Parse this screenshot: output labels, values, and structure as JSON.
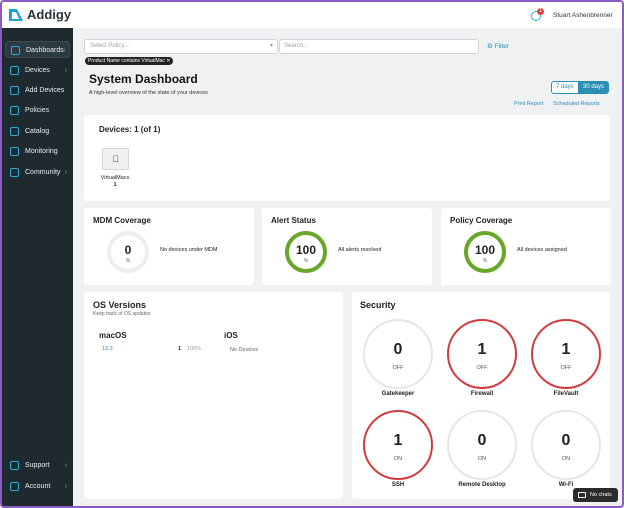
{
  "header": {
    "logo": "Addigy",
    "notification_count": 1,
    "user": "Stuart Ashenbrenner"
  },
  "sidebar": {
    "items": [
      "Dashboards",
      "Devices",
      "Add Devices",
      "Policies",
      "Catalog",
      "Monitoring",
      "Community"
    ],
    "bottom_items": [
      "Support",
      "Account"
    ]
  },
  "filters": {
    "policy_placeholder": "Select Policy...",
    "search_placeholder": "Search...",
    "filter_button": "Filter",
    "active_filter": "Product Name contains VirtualMac"
  },
  "page": {
    "title": "System Dashboard",
    "subtitle": "A high-level overview of the state of your devices",
    "ranges": [
      "7 days",
      "30 days"
    ],
    "links": [
      "Print Report",
      "Scheduled Reports"
    ]
  },
  "devices": {
    "title": "Devices: 1 (of 1)",
    "items": [
      {
        "name": "VirtualMacs",
        "count": 1
      }
    ]
  },
  "coverage": [
    {
      "title": "MDM Coverage",
      "value": 0,
      "unit": "%",
      "status": "No devices under MDM"
    },
    {
      "title": "Alert Status",
      "value": 100,
      "unit": "%",
      "status": "All alerts resolved"
    },
    {
      "title": "Policy Coverage",
      "value": 100,
      "unit": "%",
      "status": "All devices assigned"
    }
  ],
  "os_versions": {
    "title": "OS Versions",
    "subtitle": "Keep track of OS updates",
    "platforms": [
      {
        "name": "macOS",
        "versions": [
          {
            "version": "13.3",
            "count": 1,
            "percent": "100%"
          }
        ]
      },
      {
        "name": "iOS",
        "empty": "No Devices"
      }
    ]
  },
  "security": {
    "title": "Security",
    "items": [
      {
        "name": "Gatekeeper",
        "value": 0,
        "state": "OFF"
      },
      {
        "name": "Firewall",
        "value": 1,
        "state": "OFF"
      },
      {
        "name": "FileVault",
        "value": 1,
        "state": "OFF"
      },
      {
        "name": "SSH",
        "value": 1,
        "state": "ON"
      },
      {
        "name": "Remote Desktop",
        "value": 0,
        "state": "ON"
      },
      {
        "name": "Wi-Fi",
        "value": 0,
        "state": "ON"
      }
    ]
  },
  "chat": "No chats"
}
